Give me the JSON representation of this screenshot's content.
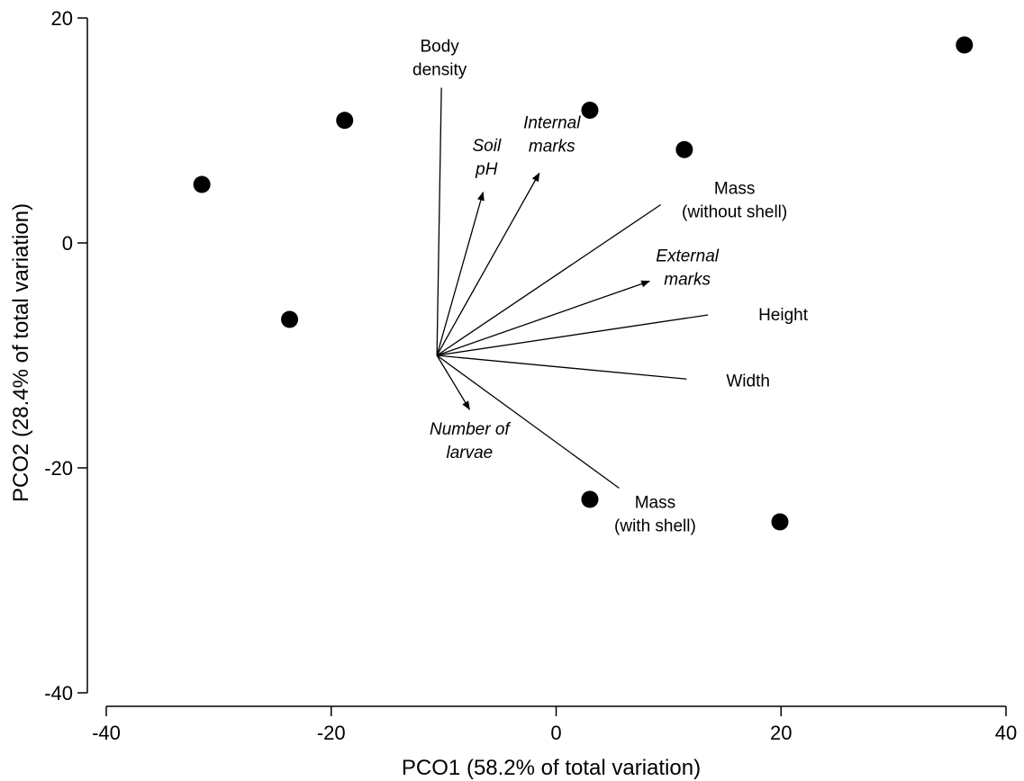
{
  "chart_data": {
    "type": "scatter",
    "xlabel": "PCO1 (58.2% of total variation)",
    "ylabel": "PCO2 (28.4% of total variation)",
    "xlim": [
      -40,
      40
    ],
    "ylim": [
      -40,
      20
    ],
    "xticks": [
      -40,
      -20,
      0,
      20,
      40
    ],
    "yticks": [
      -40,
      -20,
      0,
      20
    ],
    "grid": false,
    "points": [
      {
        "x": -31.5,
        "y": 5.2
      },
      {
        "x": -23.7,
        "y": -6.8
      },
      {
        "x": -18.8,
        "y": 10.9
      },
      {
        "x": 3.0,
        "y": 11.8
      },
      {
        "x": 11.4,
        "y": 8.3
      },
      {
        "x": 36.3,
        "y": 17.6
      },
      {
        "x": 3.0,
        "y": -22.8
      },
      {
        "x": 19.9,
        "y": -24.8
      }
    ],
    "vector_origin": {
      "x": -10.6,
      "y": -10.0
    },
    "vectors": [
      {
        "label": [
          "Body",
          "density"
        ],
        "italic": false,
        "arrow": false,
        "x": -10.2,
        "y": 13.8
      },
      {
        "label": [
          "Soil",
          "pH"
        ],
        "italic": true,
        "arrow": true,
        "x": -6.5,
        "y": 4.5
      },
      {
        "label": [
          "Internal",
          "marks"
        ],
        "italic": true,
        "arrow": true,
        "x": -1.5,
        "y": 6.2
      },
      {
        "label": [
          "Mass",
          "(without shell)"
        ],
        "italic": false,
        "arrow": false,
        "x": 9.3,
        "y": 3.4
      },
      {
        "label": [
          "External",
          "marks"
        ],
        "italic": true,
        "arrow": true,
        "x": 8.3,
        "y": -3.4
      },
      {
        "label": [
          "Height"
        ],
        "italic": false,
        "arrow": false,
        "x": 13.5,
        "y": -6.4
      },
      {
        "label": [
          "Width"
        ],
        "italic": false,
        "arrow": false,
        "x": 11.6,
        "y": -12.1
      },
      {
        "label": [
          "Number of",
          "larvae"
        ],
        "italic": true,
        "arrow": true,
        "x": -7.7,
        "y": -14.8
      },
      {
        "label": [
          "Mass",
          "(with shell)"
        ],
        "italic": false,
        "arrow": false,
        "x": 5.6,
        "y": -21.8
      }
    ]
  }
}
